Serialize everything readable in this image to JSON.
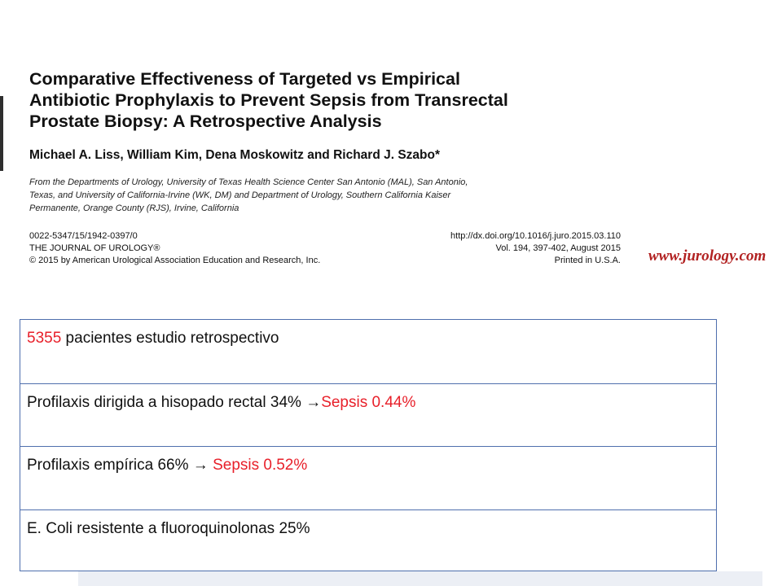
{
  "article": {
    "title_lines": [
      "Comparative Effectiveness of Targeted vs Empirical",
      "Antibiotic Prophylaxis to Prevent Sepsis from Transrectal",
      "Prostate Biopsy: A Retrospective Analysis"
    ],
    "authors": "Michael A. Liss, William Kim, Dena Moskowitz and Richard J. Szabo*",
    "affiliation_lines": [
      "From the Departments of Urology, University of Texas Health Science Center San Antonio (MAL), San Antonio,",
      "Texas, and University of California-Irvine (WK, DM) and Department of Urology, Southern California Kaiser",
      "Permanente, Orange County (RJS), Irvine, California"
    ],
    "meta_left": [
      "0022-5347/15/1942-0397/0",
      "THE JOURNAL OF UROLOGY®",
      "© 2015 by American Urological Association Education and Research, Inc."
    ],
    "meta_right": [
      "http://dx.doi.org/10.1016/j.juro.2015.03.110",
      "Vol. 194, 397-402, August 2015",
      "Printed in U.S.A."
    ],
    "site": "www.jurology.com"
  },
  "summary": {
    "row1": {
      "number": "5355",
      "text": " pacientes estudio retrospectivo"
    },
    "row2": {
      "text": "Profilaxis dirigida a hisopado rectal 34% ",
      "arrow": "→",
      "sepsis": "Sepsis 0.44%"
    },
    "row3": {
      "text": "Profilaxis empírica 66% ",
      "arrow": "→",
      "sepsis": " Sepsis 0.52%"
    },
    "row4": {
      "text": "E. Coli resistente a fluoroquinolonas 25%"
    }
  },
  "colors": {
    "accent_red": "#e8202a",
    "table_border": "#4f6fad",
    "site_red": "#b22222"
  }
}
